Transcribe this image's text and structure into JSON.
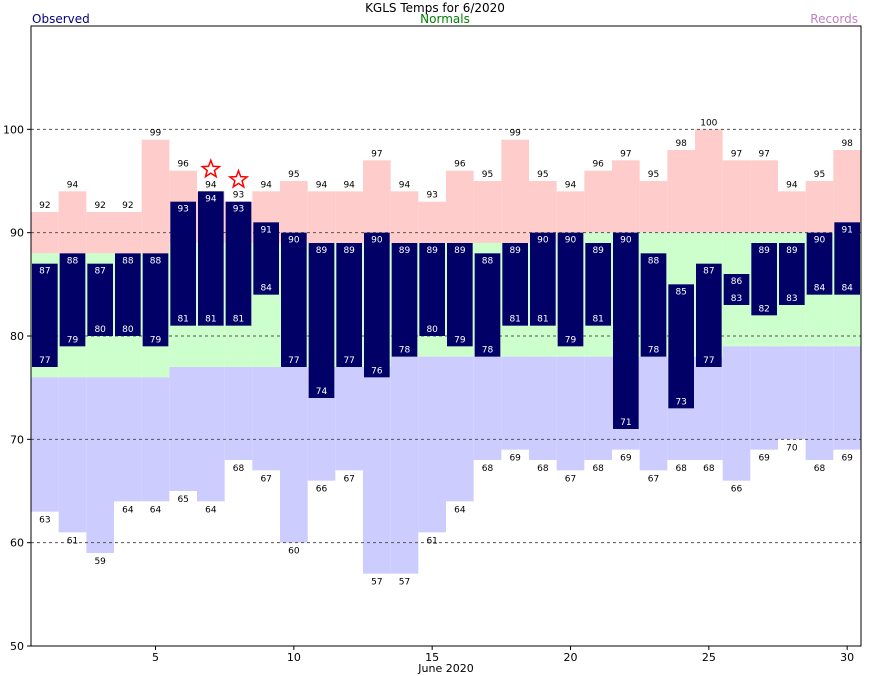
{
  "chart_data": {
    "type": "bar",
    "title": "KGLS Temps for 6/2020",
    "xlabel": "June 2020",
    "ylabel": "",
    "legend": [
      {
        "name": "Observed",
        "color": "#000080"
      },
      {
        "name": "Normals",
        "color": "#008000"
      },
      {
        "name": "Records",
        "color": "#c080c0"
      }
    ],
    "ylim": [
      50,
      110
    ],
    "yticks": [
      50,
      60,
      70,
      80,
      90,
      100
    ],
    "xticks": [
      5,
      10,
      15,
      20,
      25,
      30
    ],
    "grid": "dashed horizontal at 60, 70, 80, 90, 100",
    "days": [
      1,
      2,
      3,
      4,
      5,
      6,
      7,
      8,
      9,
      10,
      11,
      12,
      13,
      14,
      15,
      16,
      17,
      18,
      19,
      20,
      21,
      22,
      23,
      24,
      25,
      26,
      27,
      28,
      29,
      30
    ],
    "series": [
      {
        "name": "Observed High",
        "values": [
          87,
          88,
          87,
          88,
          88,
          93,
          94,
          93,
          91,
          90,
          89,
          89,
          90,
          89,
          89,
          89,
          88,
          89,
          90,
          90,
          89,
          90,
          88,
          85,
          87,
          86,
          89,
          89,
          90,
          91
        ]
      },
      {
        "name": "Observed Low",
        "values": [
          77,
          79,
          80,
          80,
          79,
          81,
          81,
          81,
          84,
          77,
          74,
          77,
          76,
          78,
          80,
          79,
          78,
          81,
          81,
          79,
          81,
          71,
          78,
          73,
          77,
          83,
          82,
          83,
          84,
          84
        ]
      },
      {
        "name": "Normal High",
        "values": [
          88,
          88,
          88,
          88,
          88,
          89,
          89,
          89,
          89,
          89,
          89,
          89,
          89,
          89,
          89,
          89,
          89,
          89,
          89,
          90,
          90,
          90,
          90,
          90,
          90,
          90,
          90,
          90,
          90,
          90
        ]
      },
      {
        "name": "Normal Low",
        "values": [
          76,
          76,
          76,
          76,
          76,
          77,
          77,
          77,
          77,
          77,
          77,
          77,
          77,
          78,
          78,
          78,
          78,
          78,
          78,
          78,
          78,
          78,
          78,
          78,
          78,
          79,
          79,
          79,
          79,
          79
        ]
      },
      {
        "name": "Record High",
        "values": [
          92,
          94,
          92,
          92,
          99,
          96,
          94,
          93,
          94,
          95,
          94,
          94,
          97,
          94,
          93,
          96,
          95,
          99,
          95,
          94,
          96,
          97,
          95,
          98,
          100,
          97,
          97,
          94,
          95,
          98
        ]
      },
      {
        "name": "Record Low",
        "values": [
          63,
          61,
          59,
          64,
          64,
          65,
          64,
          68,
          67,
          60,
          66,
          67,
          57,
          57,
          61,
          64,
          68,
          69,
          68,
          67,
          68,
          69,
          67,
          68,
          68,
          66,
          69,
          70,
          68,
          69
        ]
      }
    ],
    "record_set_days": [
      7,
      8
    ],
    "colors": {
      "observed": "#000066",
      "observed_label": "#ffffff",
      "normal": "#ccffcc",
      "record_high": "#ffcccc",
      "record_low": "#ccccff",
      "star": "#ff0000",
      "grid": "#555555",
      "legend_observed": "#000080",
      "legend_normals": "#008000",
      "legend_records": "#c080c0"
    }
  }
}
